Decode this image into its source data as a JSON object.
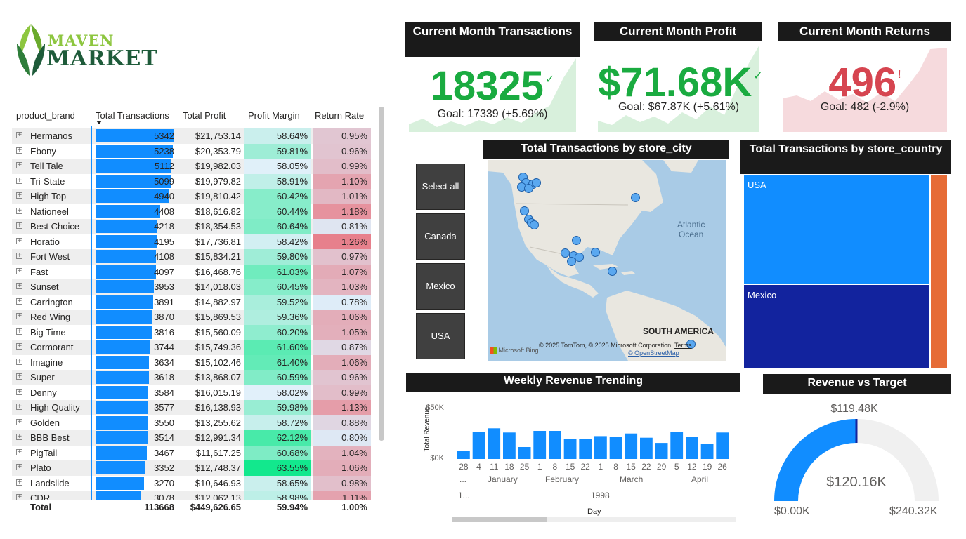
{
  "logo": {
    "line1": "MAVEN",
    "line2": "MARKET"
  },
  "matrix": {
    "headers": {
      "brand": "product_brand",
      "transactions": "Total Transactions",
      "profit": "Total Profit",
      "margin": "Profit Margin",
      "return_rate": "Return Rate"
    },
    "rows": [
      {
        "brand": "Hermanos",
        "transactions": "5342",
        "profit": "$21,753.14",
        "margin": "58.64%",
        "return_rate": "0.95%"
      },
      {
        "brand": "Ebony",
        "transactions": "5238",
        "profit": "$20,353.79",
        "margin": "59.81%",
        "return_rate": "0.96%"
      },
      {
        "brand": "Tell Tale",
        "transactions": "5112",
        "profit": "$19,982.03",
        "margin": "58.05%",
        "return_rate": "0.99%"
      },
      {
        "brand": "Tri-State",
        "transactions": "5099",
        "profit": "$19,979.82",
        "margin": "58.91%",
        "return_rate": "1.10%"
      },
      {
        "brand": "High Top",
        "transactions": "4940",
        "profit": "$19,810.42",
        "margin": "60.42%",
        "return_rate": "1.01%"
      },
      {
        "brand": "Nationeel",
        "transactions": "4408",
        "profit": "$18,616.82",
        "margin": "60.44%",
        "return_rate": "1.18%"
      },
      {
        "brand": "Best Choice",
        "transactions": "4218",
        "profit": "$18,354.53",
        "margin": "60.64%",
        "return_rate": "0.81%"
      },
      {
        "brand": "Horatio",
        "transactions": "4195",
        "profit": "$17,736.81",
        "margin": "58.42%",
        "return_rate": "1.26%"
      },
      {
        "brand": "Fort West",
        "transactions": "4108",
        "profit": "$15,834.21",
        "margin": "59.80%",
        "return_rate": "0.97%"
      },
      {
        "brand": "Fast",
        "transactions": "4097",
        "profit": "$16,468.76",
        "margin": "61.03%",
        "return_rate": "1.07%"
      },
      {
        "brand": "Sunset",
        "transactions": "3953",
        "profit": "$14,018.03",
        "margin": "60.45%",
        "return_rate": "1.03%"
      },
      {
        "brand": "Carrington",
        "transactions": "3891",
        "profit": "$14,882.97",
        "margin": "59.52%",
        "return_rate": "0.78%"
      },
      {
        "brand": "Red Wing",
        "transactions": "3870",
        "profit": "$15,869.53",
        "margin": "59.36%",
        "return_rate": "1.06%"
      },
      {
        "brand": "Big Time",
        "transactions": "3816",
        "profit": "$15,560.09",
        "margin": "60.20%",
        "return_rate": "1.05%"
      },
      {
        "brand": "Cormorant",
        "transactions": "3744",
        "profit": "$15,749.36",
        "margin": "61.60%",
        "return_rate": "0.87%"
      },
      {
        "brand": "Imagine",
        "transactions": "3634",
        "profit": "$15,102.46",
        "margin": "61.40%",
        "return_rate": "1.06%"
      },
      {
        "brand": "Super",
        "transactions": "3618",
        "profit": "$13,868.07",
        "margin": "60.59%",
        "return_rate": "0.96%"
      },
      {
        "brand": "Denny",
        "transactions": "3584",
        "profit": "$16,015.19",
        "margin": "58.02%",
        "return_rate": "0.99%"
      },
      {
        "brand": "High Quality",
        "transactions": "3577",
        "profit": "$16,138.93",
        "margin": "59.98%",
        "return_rate": "1.13%"
      },
      {
        "brand": "Golden",
        "transactions": "3550",
        "profit": "$13,255.62",
        "margin": "58.72%",
        "return_rate": "0.88%"
      },
      {
        "brand": "BBB Best",
        "transactions": "3514",
        "profit": "$12,991.34",
        "margin": "62.12%",
        "return_rate": "0.80%"
      },
      {
        "brand": "PigTail",
        "transactions": "3467",
        "profit": "$11,617.25",
        "margin": "60.68%",
        "return_rate": "1.04%"
      },
      {
        "brand": "Plato",
        "transactions": "3352",
        "profit": "$12,748.37",
        "margin": "63.55%",
        "return_rate": "1.06%"
      },
      {
        "brand": "Landslide",
        "transactions": "3270",
        "profit": "$10,646.93",
        "margin": "58.65%",
        "return_rate": "0.98%"
      },
      {
        "brand": "CDR",
        "transactions": "3078",
        "profit": "$12,062.13",
        "margin": "58.98%",
        "return_rate": "1.11%"
      }
    ],
    "total": {
      "label": "Total",
      "transactions": "113668",
      "profit": "$449,626.65",
      "margin": "59.94%",
      "return_rate": "1.00%"
    }
  },
  "kpis": {
    "transactions": {
      "title": "Current Month Transactions",
      "value": "18325",
      "mark": "✓",
      "goal": "Goal: 17339 (+5.69%)",
      "color": "#1aab40"
    },
    "profit": {
      "title": "Current Month Profit",
      "value": "$71.68K",
      "mark": "✓",
      "goal": "Goal: $67.87K (+5.61%)",
      "color": "#1aab40"
    },
    "returns": {
      "title": "Current Month Returns",
      "value": "496",
      "mark": "!",
      "goal": "Goal: 482 (-2.9%)",
      "color": "#d64550"
    }
  },
  "slicer": {
    "items": [
      "Select all",
      "Canada",
      "Mexico",
      "USA"
    ]
  },
  "map": {
    "title": "Total Transactions by store_city",
    "ocean_label_1": "Atlantic",
    "ocean_label_2": "Ocean",
    "continent_label": "SOUTH AMERICA",
    "bing_label": "Microsoft Bing",
    "copyright": "© 2025 TomTom, © 2025 Microsoft Corporation,",
    "terms": "Terms",
    "osm": "© OpenStreetMap"
  },
  "treemap": {
    "title": "Total Transactions by store_country",
    "cells": [
      {
        "label": "USA",
        "color": "#118dff"
      },
      {
        "label": "Mexico",
        "color": "#12239e"
      },
      {
        "label": "",
        "color": "#e66c37"
      }
    ]
  },
  "weekly": {
    "title": "Weekly Revenue Trending",
    "ylabel": "Total Revenue",
    "xlabel": "Day",
    "yticks": [
      "$50K",
      "$0K"
    ],
    "week_labels": [
      "28",
      "4",
      "11",
      "18",
      "25",
      "1",
      "8",
      "15",
      "22",
      "1",
      "8",
      "15",
      "22",
      "29",
      "5",
      "12",
      "19",
      "26"
    ],
    "month_labels": [
      "...",
      "January",
      "February",
      "March",
      "April"
    ],
    "year_labels": [
      "1...",
      "1998"
    ]
  },
  "gauge": {
    "title": "Revenue vs Target",
    "target": "$119.48K",
    "value": "$120.16K",
    "min": "$0.00K",
    "max": "$240.32K"
  },
  "chart_data": {
    "type": "bar",
    "title": "Weekly Revenue Trending",
    "xlabel": "Day",
    "ylabel": "Total Revenue",
    "categories": [
      "Dec 28",
      "Jan 4",
      "Jan 11",
      "Jan 18",
      "Jan 25",
      "Feb 1",
      "Feb 8",
      "Feb 15",
      "Feb 22",
      "Mar 1",
      "Mar 8",
      "Mar 15",
      "Mar 22",
      "Mar 29",
      "Apr 5",
      "Apr 12",
      "Apr 19",
      "Apr 26"
    ],
    "values": [
      7800,
      26000,
      29500,
      25500,
      11500,
      27000,
      27000,
      19500,
      19000,
      22000,
      21500,
      24500,
      20500,
      15500,
      26000,
      21000,
      14500,
      25500
    ],
    "ylim": [
      0,
      50000
    ],
    "color": "#118dff",
    "grid": false
  }
}
